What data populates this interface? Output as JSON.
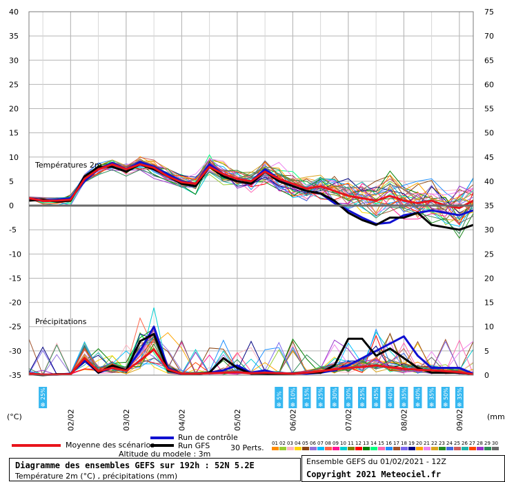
{
  "chart_data": {
    "type": "line",
    "left_axis": {
      "unit": "(°C)",
      "ticks": [
        40,
        35,
        30,
        25,
        20,
        15,
        10,
        5,
        0,
        -5,
        -10,
        -15,
        -20,
        -25,
        -30,
        -35
      ],
      "range": [
        -35,
        40
      ]
    },
    "right_axis": {
      "unit": "(mm)",
      "ticks": [
        75,
        70,
        65,
        60,
        55,
        50,
        45,
        40,
        35,
        30,
        25,
        20,
        15,
        10,
        5,
        0
      ],
      "range": [
        0,
        75
      ]
    },
    "x_axis": {
      "day_labels": [
        "02/02",
        "03/02",
        "04/02",
        "05/02",
        "06/02",
        "07/02",
        "08/02",
        "09/02"
      ],
      "day_positions_h": [
        18,
        42,
        66,
        90,
        114,
        138,
        162,
        186
      ],
      "range_h": [
        0,
        192
      ]
    },
    "annotations": {
      "temp": "Températures 2m",
      "precip": "Précipitations"
    },
    "snow": {
      "left": {
        "h": 6,
        "pct": "25%"
      },
      "right": [
        {
          "h": 108,
          "pct": "5%"
        },
        {
          "h": 114,
          "pct": "10%"
        },
        {
          "h": 120,
          "pct": "15%"
        },
        {
          "h": 126,
          "pct": "25%"
        },
        {
          "h": 132,
          "pct": "30%"
        },
        {
          "h": 138,
          "pct": "30%"
        },
        {
          "h": 144,
          "pct": "25%"
        },
        {
          "h": 150,
          "pct": "45%"
        },
        {
          "h": 156,
          "pct": "40%"
        },
        {
          "h": 162,
          "pct": "35%"
        },
        {
          "h": 168,
          "pct": "40%"
        },
        {
          "h": 174,
          "pct": "35%"
        },
        {
          "h": 180,
          "pct": "50%"
        },
        {
          "h": 186,
          "pct": "35%"
        }
      ]
    },
    "temperature_series": {
      "h": [
        0,
        6,
        12,
        18,
        24,
        30,
        36,
        42,
        48,
        54,
        60,
        66,
        72,
        78,
        84,
        90,
        96,
        102,
        108,
        114,
        120,
        126,
        132,
        138,
        144,
        150,
        156,
        162,
        168,
        174,
        180,
        186,
        192
      ],
      "mean": [
        1.5,
        1.0,
        1.0,
        1.2,
        5.5,
        7.5,
        8.5,
        7.5,
        8.5,
        7.8,
        6.0,
        4.8,
        4.5,
        8.0,
        6.5,
        5.5,
        5.0,
        7.0,
        5.5,
        4.5,
        3.5,
        4.0,
        3.0,
        2.0,
        1.5,
        1.0,
        2.0,
        1.0,
        0.5,
        1.0,
        0.0,
        -0.5,
        1.0
      ],
      "control": [
        1.2,
        1.0,
        1.2,
        1.5,
        5.0,
        7.5,
        8.8,
        7.5,
        9.0,
        8.0,
        6.5,
        5.0,
        4.5,
        8.5,
        6.5,
        5.5,
        5.0,
        7.5,
        5.5,
        4.0,
        3.0,
        2.5,
        0.5,
        -1.0,
        -2.5,
        -3.8,
        -3.5,
        -2.0,
        -1.5,
        -1.0,
        -1.5,
        -2.0,
        -1.0
      ],
      "gfs": [
        1.0,
        1.2,
        0.8,
        1.0,
        6.0,
        8.0,
        8.0,
        7.0,
        8.5,
        7.5,
        6.0,
        4.5,
        4.0,
        8.0,
        6.0,
        5.0,
        4.5,
        7.0,
        5.0,
        4.0,
        3.0,
        2.5,
        1.0,
        -1.5,
        -3.0,
        -4.0,
        -2.5,
        -2.5,
        -1.5,
        -4.0,
        -4.5,
        -5.0,
        -4.0
      ]
    },
    "precipitation_series": {
      "h": [
        0,
        6,
        12,
        18,
        24,
        30,
        36,
        42,
        48,
        54,
        60,
        66,
        72,
        78,
        84,
        90,
        96,
        102,
        108,
        114,
        120,
        126,
        132,
        138,
        144,
        150,
        156,
        162,
        168,
        174,
        180,
        186,
        192
      ],
      "mean": [
        0.3,
        0.1,
        0.1,
        0.2,
        3.5,
        0.8,
        1.5,
        0.9,
        3.0,
        5.3,
        1.2,
        0.3,
        0.3,
        0.4,
        0.5,
        0.6,
        0.4,
        0.5,
        0.4,
        0.3,
        0.5,
        0.8,
        1.2,
        1.5,
        1.7,
        2.0,
        1.6,
        1.3,
        1.1,
        1.0,
        0.8,
        0.6,
        0.2
      ],
      "control": [
        0.2,
        0.1,
        0.1,
        0.3,
        3.0,
        0.5,
        1.5,
        1.0,
        5.0,
        10.0,
        1.5,
        0.2,
        0.2,
        0.5,
        1.0,
        2.0,
        0.5,
        1.0,
        0.2,
        0.4,
        0.3,
        0.5,
        1.0,
        2.0,
        3.5,
        5.0,
        6.5,
        8.0,
        4.0,
        1.5,
        1.5,
        1.5,
        0.3
      ],
      "gfs": [
        0.2,
        0.0,
        0.2,
        0.2,
        3.5,
        0.5,
        2.0,
        1.0,
        7.0,
        8.5,
        1.0,
        0.3,
        0.2,
        0.5,
        3.5,
        1.5,
        0.3,
        0.3,
        0.2,
        0.3,
        0.5,
        0.5,
        2.0,
        7.5,
        7.5,
        4.0,
        5.5,
        3.5,
        1.5,
        0.5,
        0.5,
        0.5,
        0.2
      ]
    }
  },
  "legend": {
    "mean": "Moyenne des scénarios",
    "control": "Run de contrôle",
    "gfs": "Run GFS",
    "perts": "30 Perts.",
    "pert_numbers": [
      "01",
      "02",
      "03",
      "04",
      "05",
      "06",
      "07",
      "08",
      "09",
      "10",
      "11",
      "12",
      "13",
      "14",
      "15",
      "16",
      "17",
      "18",
      "19",
      "20",
      "21",
      "22",
      "23",
      "24",
      "25",
      "26",
      "27",
      "28",
      "29",
      "30"
    ],
    "pert_colors": [
      "#ff8c00",
      "#9acd32",
      "#ffb6c1",
      "#ffd700",
      "#8b4513",
      "#9370db",
      "#00bfff",
      "#ff6347",
      "#ff1493",
      "#00ced1",
      "#808000",
      "#ff0000",
      "#008000",
      "#00ff7f",
      "#ff69b4",
      "#1e90ff",
      "#a0522d",
      "#7b68ee",
      "#000080",
      "#ffa500",
      "#ee82ee",
      "#daa520",
      "#228b22",
      "#4169e1",
      "#cd5c5c",
      "#20b2aa",
      "#ff4500",
      "#9932cc",
      "#2e8b57",
      "#696969"
    ],
    "altitude": "Altitude du modele : 3m"
  },
  "footer": {
    "title": "Diagramme des ensembles GEFS sur 192h : 52N 5.2E",
    "subtitle": "Température 2m (°C) , précipitations (mm)",
    "run": "Ensemble GEFS du 01/02/2021 - 12Z",
    "copyright": "Copyright 2021 Meteociel.fr"
  },
  "colors": {
    "mean": "#e8141c",
    "control": "#1010d0",
    "gfs": "#000000",
    "zero_line": "#6b6b6b",
    "grid": "#b4b4b4",
    "snow_bg": "#35b7f0"
  }
}
